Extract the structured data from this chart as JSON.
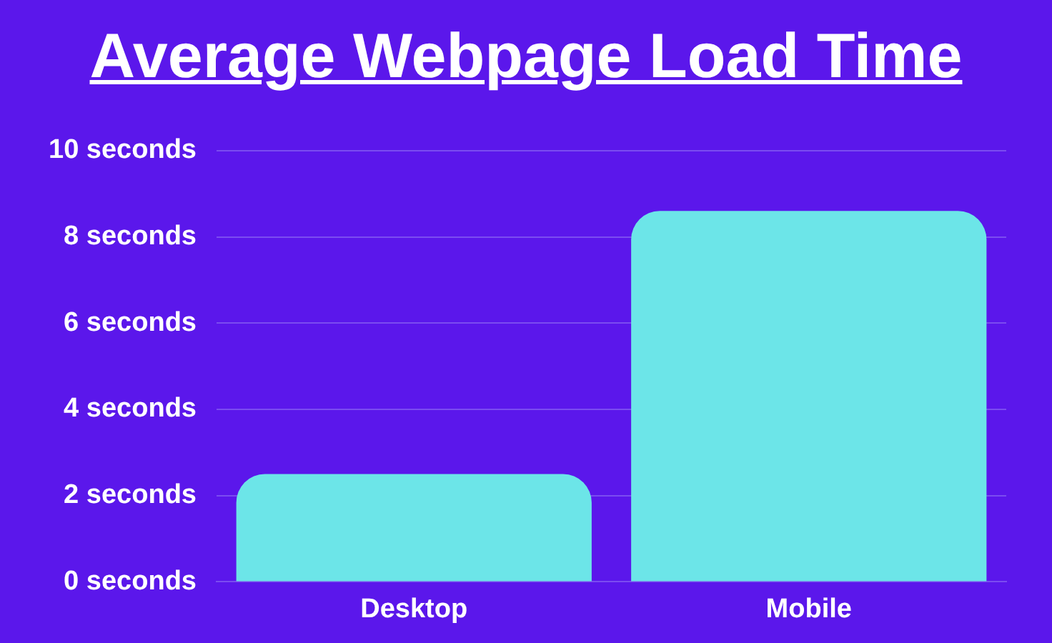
{
  "chart_data": {
    "type": "bar",
    "title": "Average Webpage Load Time",
    "categories": [
      "Desktop",
      "Mobile"
    ],
    "values": [
      2.5,
      8.6
    ],
    "color": "#6ce5e8",
    "ylim": [
      0,
      10
    ],
    "yticks": [
      {
        "value": 0,
        "label": "0 seconds"
      },
      {
        "value": 2,
        "label": "2 seconds"
      },
      {
        "value": 4,
        "label": "4 seconds"
      },
      {
        "value": 6,
        "label": "6 seconds"
      },
      {
        "value": 8,
        "label": "8 seconds"
      },
      {
        "value": 10,
        "label": "10 seconds"
      }
    ],
    "grid": "y"
  }
}
